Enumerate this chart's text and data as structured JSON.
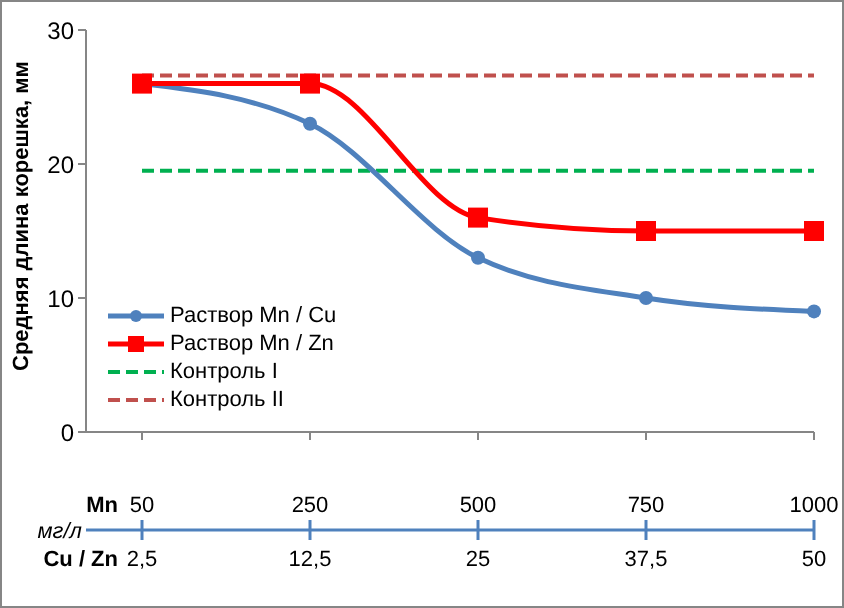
{
  "chart_data": {
    "type": "line",
    "ylabel": "Средняя длина корешка, мм",
    "xlabel": "Mn",
    "categories": [
      "50",
      "250",
      "500",
      "750",
      "1000"
    ],
    "series": [
      {
        "name": "Раствор Mn / Cu",
        "color": "#4f81bd",
        "values": [
          26,
          23,
          13,
          10,
          9
        ],
        "marker": "circle"
      },
      {
        "name": "Раствор Mn / Zn",
        "color": "#ff0000",
        "values": [
          26,
          26,
          16,
          15,
          15
        ],
        "marker": "square"
      }
    ],
    "ref_lines": [
      {
        "axis": "y",
        "value": 19.5,
        "label": "Контроль I",
        "color": "#00b050",
        "line_style": "dashed"
      },
      {
        "axis": "y",
        "value": 26.6,
        "label": "Контроль II",
        "color": "#c0504d",
        "line_style": "dashed"
      }
    ],
    "annotations": [
      "мг/л",
      "Cu / Zn",
      {
        "text": "2,5",
        "x": "50"
      },
      {
        "text": "12,5",
        "x": "250"
      },
      {
        "text": "25",
        "x": "500"
      },
      {
        "text": "37,5",
        "x": "750"
      },
      {
        "text": "50",
        "x": "1000"
      }
    ],
    "ylim": [
      0,
      30
    ],
    "yticks": [
      0,
      10,
      20,
      30
    ],
    "grid": false,
    "legend": "bottom left",
    "line_style": "solid"
  }
}
